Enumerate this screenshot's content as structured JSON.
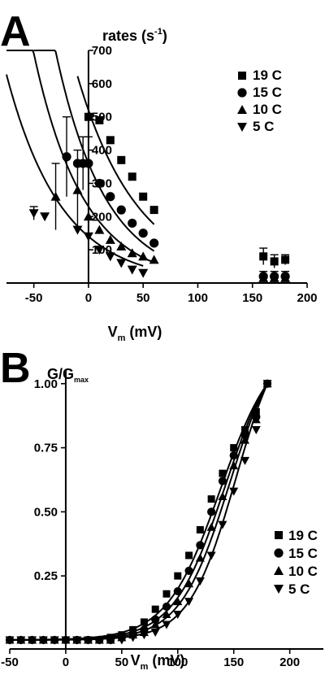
{
  "chart_data": [
    {
      "panel": "A",
      "type": "scatter",
      "ylabel": "rates (s",
      "ylabel_sup": "-1",
      "ylabel_close": ")",
      "xlabel": "V",
      "xlabel_sub": "m",
      "xlabel_unit": " (mV)",
      "xlim": [
        -75,
        200
      ],
      "ylim": [
        0,
        700
      ],
      "xticks": [
        -50,
        0,
        50,
        100,
        150,
        200
      ],
      "yticks": [
        100,
        200,
        300,
        400,
        500,
        600,
        700
      ],
      "legend_position": "top-right",
      "series": [
        {
          "name": "19 C",
          "marker": "square",
          "x": [
            0,
            10,
            20,
            30,
            40,
            50,
            60,
            160,
            170,
            180
          ],
          "y": [
            500,
            490,
            430,
            370,
            320,
            260,
            220,
            80,
            65,
            70
          ],
          "err": [
            0,
            0,
            0,
            0,
            0,
            0,
            0,
            25,
            20,
            15
          ],
          "fit": {
            "a": 520,
            "k": 0.018,
            "xmin": -10,
            "xmax": 60
          }
        },
        {
          "name": "15 C",
          "marker": "circle",
          "x": [
            -20,
            -10,
            -5,
            0,
            10,
            20,
            30,
            40,
            50,
            60,
            160,
            170,
            180
          ],
          "y": [
            380,
            360,
            360,
            360,
            300,
            260,
            220,
            180,
            150,
            120,
            20,
            20,
            20
          ],
          "err": [
            120,
            0,
            80,
            80,
            0,
            0,
            0,
            0,
            0,
            0,
            15,
            15,
            15
          ],
          "fit": {
            "a": 360,
            "k": 0.022,
            "xmin": -50,
            "xmax": 60
          }
        },
        {
          "name": "10 C",
          "marker": "triangle-up",
          "x": [
            -30,
            -10,
            0,
            10,
            20,
            30,
            40,
            50,
            60,
            160,
            170,
            180
          ],
          "y": [
            260,
            280,
            200,
            160,
            130,
            110,
            90,
            80,
            70,
            15,
            15,
            15
          ],
          "err": [
            100,
            120,
            0,
            0,
            0,
            0,
            0,
            0,
            0,
            10,
            10,
            10
          ],
          "fit": {
            "a": 230,
            "k": 0.022,
            "xmin": -75,
            "xmax": 60
          }
        },
        {
          "name": "5 C",
          "marker": "triangle-down",
          "x": [
            -50,
            -40,
            -10,
            0,
            10,
            20,
            30,
            40,
            50
          ],
          "y": [
            210,
            200,
            160,
            140,
            100,
            80,
            60,
            40,
            30
          ],
          "err": [
            20,
            0,
            0,
            0,
            0,
            0,
            0,
            0,
            0
          ],
          "fit": {
            "a": 140,
            "k": 0.02,
            "xmin": -75,
            "xmax": 50
          }
        }
      ]
    },
    {
      "panel": "B",
      "type": "scatter",
      "ylabel": "G/G",
      "ylabel_sub": "max",
      "xlabel": "V",
      "xlabel_sub": "m",
      "xlabel_unit": " (mV)",
      "xlim": [
        -50,
        230
      ],
      "ylim": [
        -0.035,
        1.05
      ],
      "xticks": [
        -50,
        0,
        50,
        100,
        150,
        200
      ],
      "yticks": [
        "1.00",
        "0.75",
        "0.50",
        "0.25"
      ],
      "legend_position": "bottom-right",
      "series": [
        {
          "name": "19 C",
          "marker": "square",
          "x": [
            -50,
            -40,
            -30,
            -20,
            -10,
            0,
            10,
            20,
            30,
            40,
            50,
            60,
            70,
            80,
            90,
            100,
            110,
            120,
            130,
            140,
            150,
            160,
            170,
            180
          ],
          "y": [
            0,
            0,
            0,
            0,
            0,
            0,
            0,
            0,
            0,
            0.01,
            0.02,
            0.04,
            0.07,
            0.12,
            0.18,
            0.25,
            0.33,
            0.43,
            0.55,
            0.65,
            0.75,
            0.82,
            0.89,
            1.0
          ],
          "fit": {
            "v0": 138,
            "s": 24
          }
        },
        {
          "name": "15 C",
          "marker": "circle",
          "x": [
            -50,
            -40,
            -30,
            -20,
            -10,
            0,
            10,
            20,
            30,
            40,
            50,
            60,
            70,
            80,
            90,
            100,
            110,
            120,
            130,
            140,
            150,
            160,
            170,
            180
          ],
          "y": [
            0,
            0,
            0,
            0,
            0,
            0,
            0,
            0,
            0,
            0,
            0.01,
            0.02,
            0.04,
            0.08,
            0.13,
            0.19,
            0.27,
            0.37,
            0.5,
            0.62,
            0.72,
            0.8,
            0.87,
            1.0
          ],
          "fit": {
            "v0": 142,
            "s": 23
          }
        },
        {
          "name": "10 C",
          "marker": "triangle-up",
          "x": [
            -50,
            -40,
            -30,
            -20,
            -10,
            0,
            10,
            20,
            30,
            40,
            50,
            60,
            70,
            80,
            90,
            100,
            110,
            120,
            130,
            140,
            150,
            160,
            170,
            180
          ],
          "y": [
            0,
            0,
            0,
            0,
            0,
            0,
            0,
            0,
            0,
            0,
            0.01,
            0.02,
            0.03,
            0.06,
            0.1,
            0.15,
            0.22,
            0.32,
            0.44,
            0.56,
            0.68,
            0.78,
            0.86,
            1.0
          ],
          "fit": {
            "v0": 146,
            "s": 22
          }
        },
        {
          "name": "5 C",
          "marker": "triangle-down",
          "x": [
            -50,
            -40,
            -30,
            -20,
            -10,
            0,
            10,
            20,
            30,
            40,
            50,
            60,
            70,
            80,
            90,
            100,
            110,
            120,
            130,
            140,
            150,
            160,
            170,
            180
          ],
          "y": [
            0,
            0,
            0,
            0,
            0,
            0,
            0,
            0,
            0,
            0,
            0,
            0.01,
            0.02,
            0.03,
            0.06,
            0.1,
            0.15,
            0.23,
            0.33,
            0.45,
            0.58,
            0.7,
            0.82,
            1.0
          ],
          "fit": {
            "v0": 152,
            "s": 21
          }
        }
      ]
    }
  ]
}
